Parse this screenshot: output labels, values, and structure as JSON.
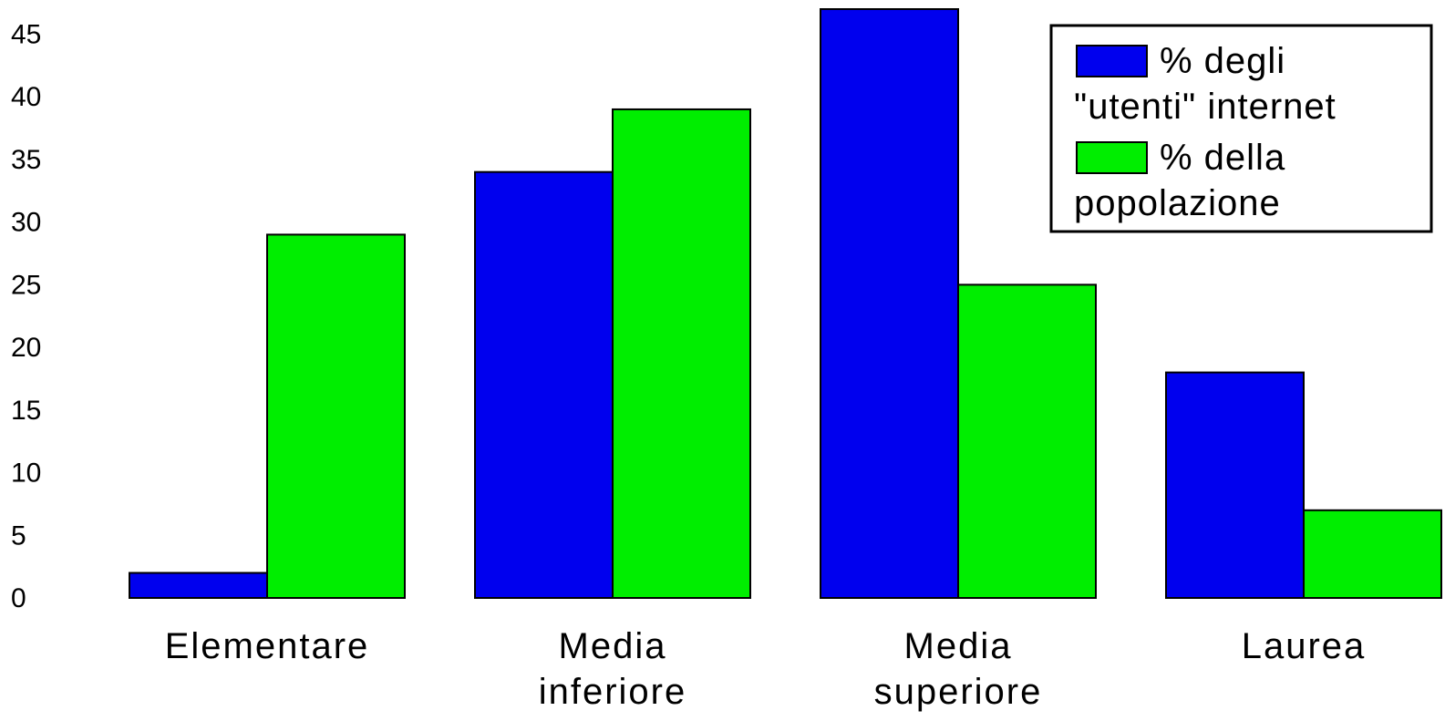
{
  "chart_data": {
    "type": "bar",
    "title": "",
    "xlabel": "",
    "ylabel": "",
    "categories": [
      [
        "Elementare"
      ],
      [
        "Media",
        "inferiore"
      ],
      [
        "Media",
        "superiore"
      ],
      [
        "Laurea"
      ]
    ],
    "series": [
      {
        "name": "% degli \"utenti\" internet",
        "legend_lines": [
          "% degli",
          "\"utenti\" internet"
        ],
        "color": "#0000ee",
        "values": [
          2,
          34,
          47,
          18
        ]
      },
      {
        "name": "% della popolazione",
        "legend_lines": [
          "% della",
          "popolazione"
        ],
        "color": "#00ee00",
        "values": [
          29,
          39,
          25,
          7
        ]
      }
    ],
    "ylim": [
      0,
      47
    ],
    "yticks": [
      0,
      5,
      10,
      15,
      20,
      25,
      30,
      35,
      40,
      45
    ],
    "grid": false,
    "legend": "top-right"
  }
}
